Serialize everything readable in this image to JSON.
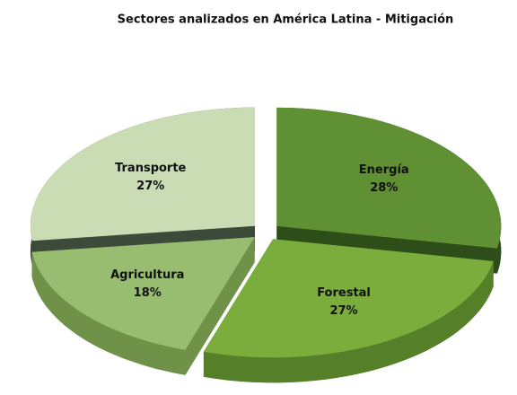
{
  "chart_data": {
    "type": "pie",
    "title": "Sectores analizados en América Latina - Mitigación",
    "labels": [
      "Energía",
      "Forestal",
      "Agricultura",
      "Transporte"
    ],
    "values": [
      28,
      27,
      18,
      27
    ],
    "value_labels": [
      "28%",
      "27%",
      "18%",
      "27%"
    ],
    "colors": [
      "#5f9033",
      "#7aad3c",
      "#99bd70",
      "#c9dcb3"
    ],
    "side_colors": [
      "#2e4e19",
      "#557f29",
      "#6f9148",
      "#3c4a3a"
    ]
  }
}
